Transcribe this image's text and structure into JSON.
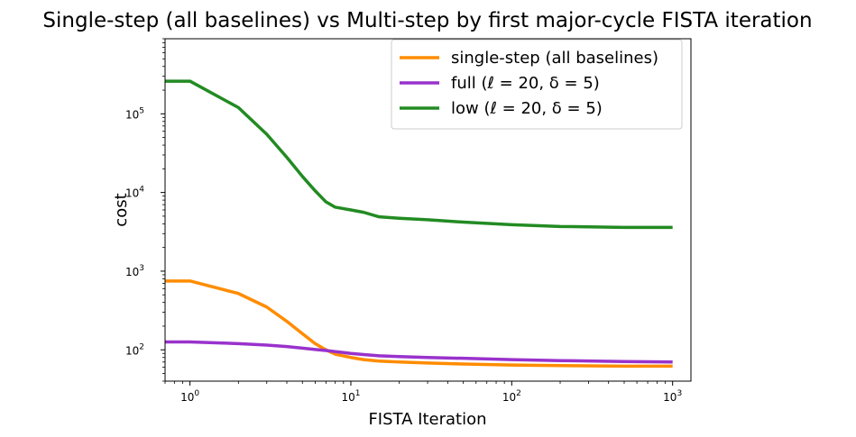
{
  "chart_data": {
    "type": "line",
    "title": "Single-step (all baselines) vs Multi-step by first major-cycle FISTA iteration",
    "xlabel": "FISTA Iteration",
    "ylabel": "cost",
    "xscale": "log",
    "yscale": "log",
    "xlim": [
      0.7,
      1300
    ],
    "ylim": [
      40,
      900000
    ],
    "grid": false,
    "legend_position": "top-right",
    "x_ticks": [
      {
        "value": 1,
        "label": "10",
        "exp": "0"
      },
      {
        "value": 10,
        "label": "10",
        "exp": "1"
      },
      {
        "value": 100,
        "label": "10",
        "exp": "2"
      },
      {
        "value": 1000,
        "label": "10",
        "exp": "3"
      }
    ],
    "y_ticks": [
      {
        "value": 100,
        "label": "10",
        "exp": "2"
      },
      {
        "value": 1000,
        "label": "10",
        "exp": "3"
      },
      {
        "value": 10000,
        "label": "10",
        "exp": "4"
      },
      {
        "value": 100000,
        "label": "10",
        "exp": "5"
      }
    ],
    "series": [
      {
        "name": "single-step (all baselines)",
        "color": "#ff8c00",
        "x": [
          0.7,
          1,
          2,
          3,
          4,
          5,
          6,
          7,
          8,
          10,
          12,
          15,
          20,
          30,
          50,
          100,
          200,
          500,
          1000
        ],
        "y": [
          750,
          750,
          520,
          350,
          230,
          160,
          120,
          100,
          88,
          80,
          75,
          72,
          70,
          68,
          66,
          64,
          63,
          62,
          62
        ]
      },
      {
        "name": "full (ℓ = 20, δ = 5)",
        "color": "#9932cc",
        "x": [
          0.7,
          1,
          2,
          3,
          4,
          5,
          6,
          7,
          8,
          10,
          12,
          15,
          20,
          30,
          50,
          100,
          200,
          500,
          1000
        ],
        "y": [
          126,
          126,
          120,
          115,
          110,
          105,
          101,
          98,
          95,
          90,
          87,
          84,
          82,
          80,
          78,
          75,
          73,
          71,
          70
        ]
      },
      {
        "name": "low (ℓ = 20, δ = 5)",
        "color": "#228b22",
        "x": [
          0.7,
          1,
          2,
          3,
          4,
          5,
          6,
          7,
          8,
          10,
          12,
          15,
          20,
          30,
          50,
          100,
          200,
          500,
          1000
        ],
        "y": [
          260000,
          260000,
          120000,
          55000,
          28000,
          16000,
          10500,
          7600,
          6500,
          6000,
          5600,
          4900,
          4700,
          4500,
          4200,
          3900,
          3700,
          3600,
          3600
        ]
      }
    ]
  }
}
